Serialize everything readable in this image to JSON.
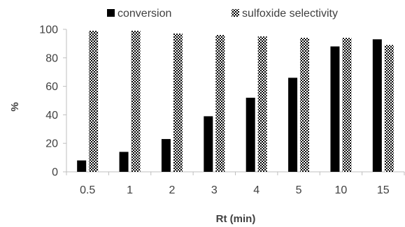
{
  "chart_data": {
    "type": "bar",
    "categories": [
      "0.5",
      "1",
      "2",
      "3",
      "4",
      "5",
      "10",
      "15"
    ],
    "series": [
      {
        "name": "conversion",
        "values": [
          8,
          14,
          23,
          39,
          52,
          66,
          88,
          93
        ],
        "fill": "solid",
        "color": "#000000"
      },
      {
        "name": "sulfoxide selectivity",
        "values": [
          99,
          99,
          97,
          96,
          95,
          94,
          94,
          89
        ],
        "fill": "checkerboard",
        "color": "#000000"
      }
    ],
    "title": "",
    "xlabel": "Rt (min)",
    "ylabel": "%",
    "ylim": [
      0,
      100
    ],
    "yticks": [
      0,
      20,
      40,
      60,
      80,
      100
    ],
    "grid": false,
    "legend_position": "top"
  }
}
